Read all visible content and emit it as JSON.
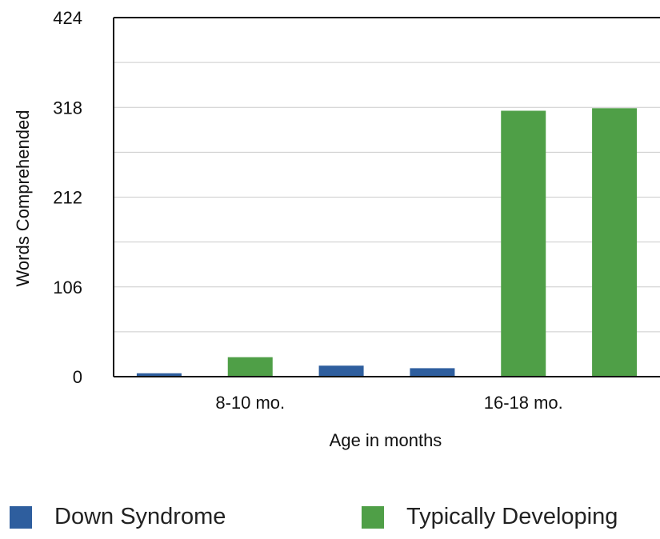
{
  "chart_data": {
    "type": "bar",
    "title": "",
    "xlabel": "Age in months",
    "ylabel": "Words Comprehended",
    "ylim": [
      0,
      424
    ],
    "yticks": [
      0,
      106,
      212,
      318,
      424
    ],
    "grid": true,
    "legend_position": "bottom",
    "groups": [
      {
        "label": "8-10 mo.",
        "bars": [
          {
            "series": "Down Syndrome",
            "value": 4
          },
          {
            "series": "Typically Developing",
            "value": 23
          },
          {
            "series": "Down Syndrome",
            "value": 13
          }
        ]
      },
      {
        "label": "16-18 mo.",
        "bars": [
          {
            "series": "Down Syndrome",
            "value": 10
          },
          {
            "series": "Typically Developing",
            "value": 314
          },
          {
            "series": "Typically Developing",
            "value": 317
          }
        ]
      }
    ],
    "series": [
      {
        "name": "Down Syndrome",
        "color": "#2e5e9e"
      },
      {
        "name": "Typically Developing",
        "color": "#4f9f47"
      }
    ]
  }
}
